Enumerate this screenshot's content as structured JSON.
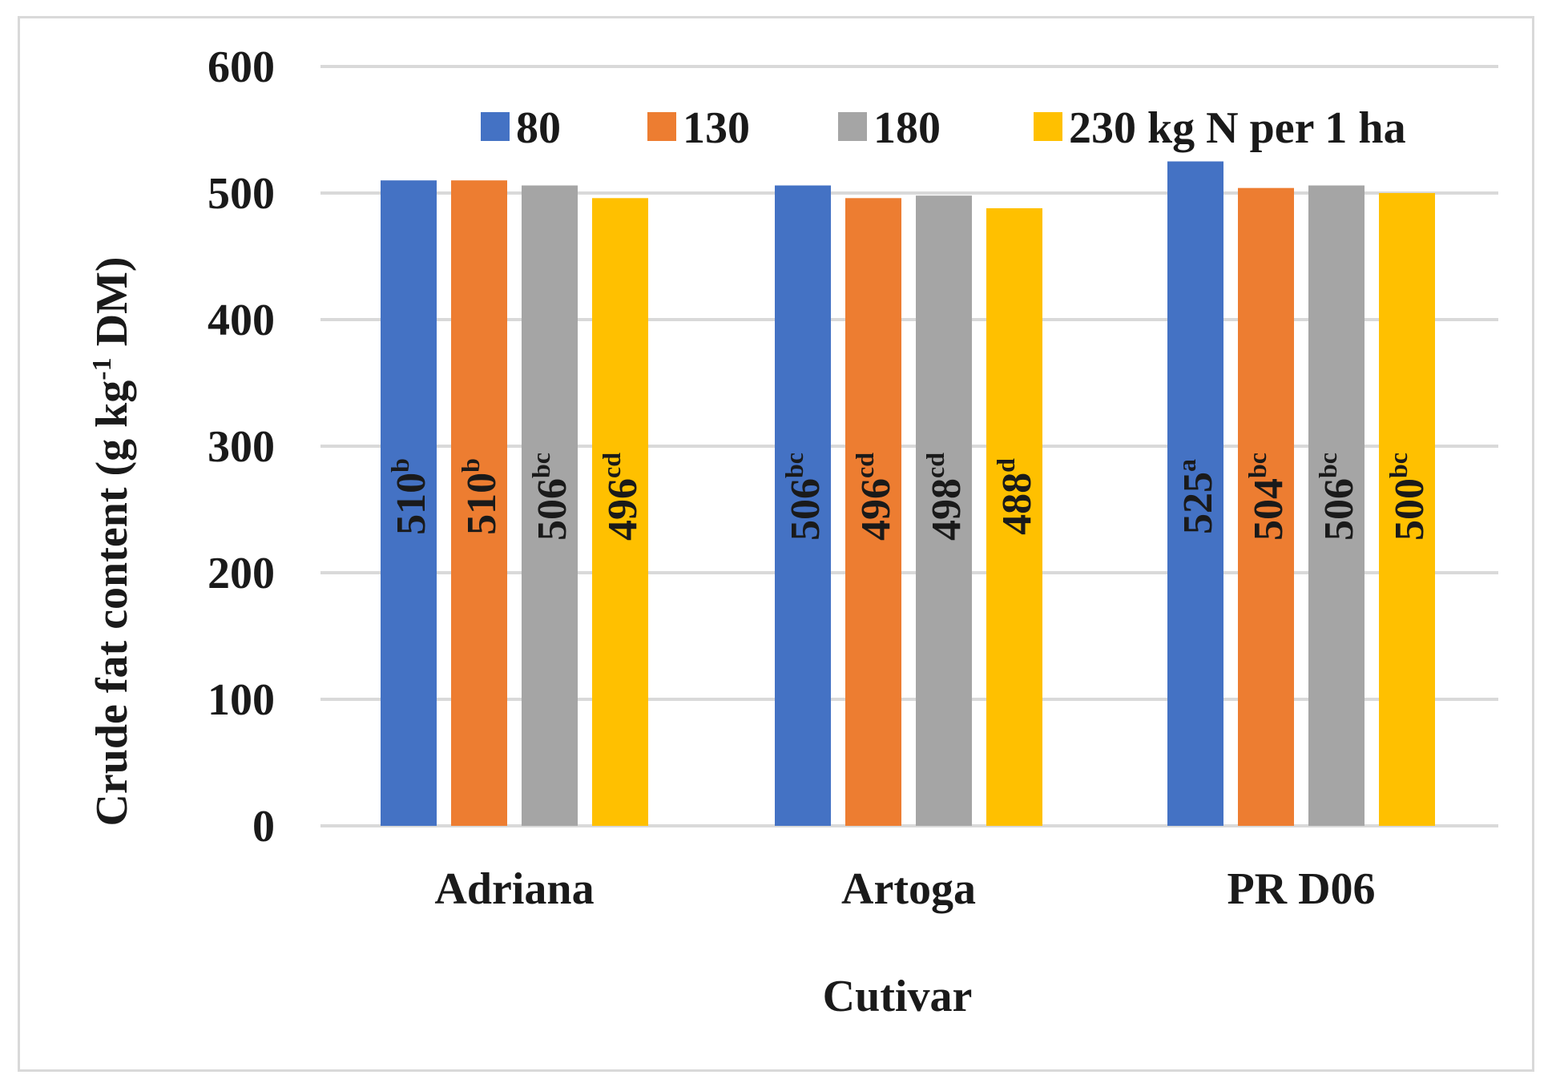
{
  "chart_data": {
    "type": "bar",
    "title": "",
    "xlabel": "Cutivar",
    "ylabel_main": "Crude fat content (g kg",
    "ylabel_sup": "-1",
    "ylabel_tail": " DM)",
    "ylim": [
      0,
      600
    ],
    "yticks": [
      0,
      100,
      200,
      300,
      400,
      500,
      600
    ],
    "grid": true,
    "legend_position": "top-right",
    "categories": [
      "Adriana",
      "Artoga",
      "PR D06"
    ],
    "series": [
      {
        "name": "80",
        "color": "#4472c4",
        "values": [
          510,
          506,
          525
        ],
        "value_labels": [
          "510",
          "506",
          "525"
        ],
        "letters": [
          "b",
          "bc",
          "a"
        ]
      },
      {
        "name": "130",
        "color": "#ed7d31",
        "values": [
          510,
          496,
          504
        ],
        "value_labels": [
          "510",
          "496",
          "504"
        ],
        "letters": [
          "b",
          "cd",
          "bc"
        ]
      },
      {
        "name": "180",
        "color": "#a5a5a5",
        "values": [
          506,
          498,
          506
        ],
        "value_labels": [
          "506",
          "498",
          "506"
        ],
        "letters": [
          "bc",
          "cd",
          "bc"
        ]
      },
      {
        "name": "230 kg N per 1 ha",
        "color": "#ffc000",
        "values": [
          496,
          488,
          500
        ],
        "value_labels": [
          "496",
          "488",
          "500"
        ],
        "letters": [
          "cd",
          "d",
          "bc"
        ]
      }
    ]
  }
}
